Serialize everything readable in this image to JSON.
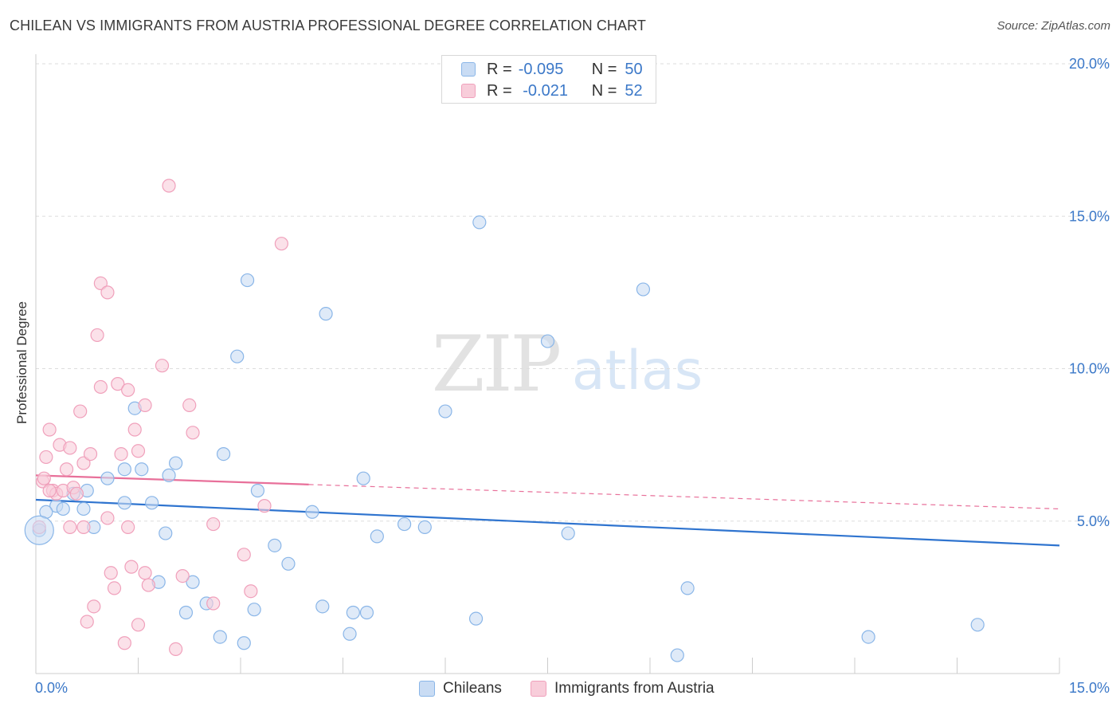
{
  "chart_data": {
    "type": "scatter",
    "title": "CHILEAN VS IMMIGRANTS FROM AUSTRIA PROFESSIONAL DEGREE CORRELATION CHART",
    "source": "Source: ZipAtlas.com",
    "ylabel": "Professional Degree",
    "xlabel": "",
    "xlim": [
      0,
      15
    ],
    "ylim": [
      0,
      20
    ],
    "x_tick_labels": [
      "0.0%",
      "15.0%"
    ],
    "y_ticks": [
      5,
      10,
      15,
      20
    ],
    "y_tick_labels": [
      "5.0%",
      "10.0%",
      "15.0%",
      "20.0%"
    ],
    "watermark": {
      "zip": "ZIP",
      "atlas": "atlas"
    },
    "legend": {
      "rows": [
        {
          "r_label": "R =",
          "r_value": "-0.095",
          "n_label": "N =",
          "n_value": "50"
        },
        {
          "r_label": "R =",
          "r_value": " -0.021",
          "n_label": "N =",
          "n_value": "52"
        }
      ]
    },
    "series": [
      {
        "name": "Chileans",
        "color": "#8ab6e8",
        "fill": "#c9dcf4",
        "line_color": "#2f74cf",
        "trend": {
          "x0": 0,
          "y0": 5.7,
          "x1": 15,
          "y1": 4.2
        },
        "points": [
          [
            0.05,
            4.7
          ],
          [
            0.3,
            5.5
          ],
          [
            0.7,
            5.4
          ],
          [
            0.55,
            5.9
          ],
          [
            0.75,
            6.0
          ],
          [
            0.85,
            4.8
          ],
          [
            1.05,
            6.4
          ],
          [
            1.3,
            6.7
          ],
          [
            1.45,
            8.7
          ],
          [
            1.55,
            6.7
          ],
          [
            1.95,
            6.5
          ],
          [
            1.3,
            5.6
          ],
          [
            1.7,
            5.6
          ],
          [
            1.9,
            4.6
          ],
          [
            1.8,
            3.0
          ],
          [
            2.05,
            6.9
          ],
          [
            2.3,
            3.0
          ],
          [
            2.2,
            2.0
          ],
          [
            2.5,
            2.3
          ],
          [
            2.7,
            1.2
          ],
          [
            2.75,
            7.2
          ],
          [
            2.95,
            10.4
          ],
          [
            3.05,
            1.0
          ],
          [
            3.1,
            12.9
          ],
          [
            3.25,
            6.0
          ],
          [
            3.2,
            2.1
          ],
          [
            3.5,
            4.2
          ],
          [
            3.7,
            3.6
          ],
          [
            4.05,
            5.3
          ],
          [
            4.2,
            2.2
          ],
          [
            4.25,
            11.8
          ],
          [
            4.6,
            1.3
          ],
          [
            4.65,
            2.0
          ],
          [
            4.85,
            2.0
          ],
          [
            4.8,
            6.4
          ],
          [
            5.0,
            4.5
          ],
          [
            5.4,
            4.9
          ],
          [
            5.7,
            4.8
          ],
          [
            6.0,
            8.6
          ],
          [
            6.45,
            1.8
          ],
          [
            6.5,
            14.8
          ],
          [
            7.5,
            10.9
          ],
          [
            7.8,
            4.6
          ],
          [
            8.9,
            12.6
          ],
          [
            9.55,
            2.8
          ],
          [
            9.4,
            0.6
          ],
          [
            12.2,
            1.2
          ],
          [
            13.8,
            1.6
          ],
          [
            0.15,
            5.3
          ],
          [
            0.4,
            5.4
          ]
        ]
      },
      {
        "name": "Immigrants from Austria",
        "color": "#f0a0bb",
        "fill": "#f8cdda",
        "line_color": "#e8709a",
        "trend": {
          "x0": 0,
          "y0": 6.5,
          "x1": 4,
          "y1": 6.2
        },
        "trend_dash": {
          "x0": 4,
          "y0": 6.2,
          "x1": 15,
          "y1": 5.4
        },
        "points": [
          [
            0.05,
            4.8
          ],
          [
            0.1,
            6.3
          ],
          [
            0.15,
            7.1
          ],
          [
            0.2,
            8.0
          ],
          [
            0.25,
            6.0
          ],
          [
            0.3,
            5.9
          ],
          [
            0.35,
            7.5
          ],
          [
            0.4,
            6.0
          ],
          [
            0.45,
            6.7
          ],
          [
            0.5,
            7.4
          ],
          [
            0.55,
            6.1
          ],
          [
            0.6,
            5.9
          ],
          [
            0.65,
            8.6
          ],
          [
            0.7,
            6.9
          ],
          [
            0.7,
            4.8
          ],
          [
            0.75,
            1.7
          ],
          [
            0.8,
            7.2
          ],
          [
            0.85,
            2.2
          ],
          [
            0.9,
            11.1
          ],
          [
            0.95,
            12.8
          ],
          [
            0.95,
            9.4
          ],
          [
            1.05,
            12.5
          ],
          [
            1.05,
            5.1
          ],
          [
            1.1,
            3.3
          ],
          [
            1.15,
            2.8
          ],
          [
            1.2,
            9.5
          ],
          [
            1.25,
            7.2
          ],
          [
            1.3,
            1.0
          ],
          [
            1.35,
            4.8
          ],
          [
            1.35,
            9.3
          ],
          [
            1.4,
            3.5
          ],
          [
            1.45,
            8.0
          ],
          [
            1.5,
            7.3
          ],
          [
            1.5,
            1.6
          ],
          [
            1.6,
            8.8
          ],
          [
            1.6,
            3.3
          ],
          [
            1.65,
            2.9
          ],
          [
            1.85,
            10.1
          ],
          [
            1.95,
            16.0
          ],
          [
            2.05,
            0.8
          ],
          [
            2.15,
            3.2
          ],
          [
            2.25,
            8.8
          ],
          [
            2.3,
            7.9
          ],
          [
            2.6,
            2.3
          ],
          [
            2.6,
            4.9
          ],
          [
            3.05,
            3.9
          ],
          [
            3.15,
            2.7
          ],
          [
            3.35,
            5.5
          ],
          [
            3.6,
            14.1
          ],
          [
            0.12,
            6.4
          ],
          [
            0.2,
            6.0
          ],
          [
            0.5,
            4.8
          ]
        ]
      }
    ],
    "bottom_legend": [
      "Chileans",
      "Immigrants from Austria"
    ]
  }
}
